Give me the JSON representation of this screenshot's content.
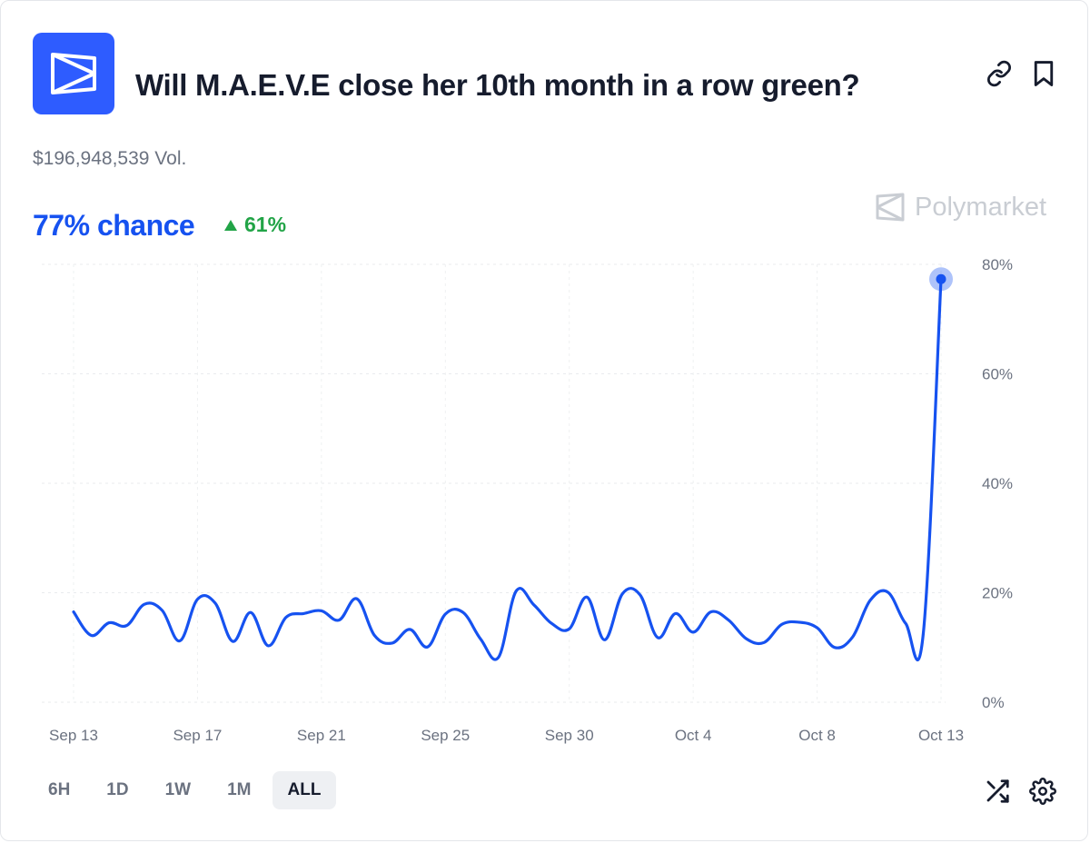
{
  "header": {
    "title": "Will M.A.E.V.E close her 10th month in a row green?",
    "volume": "$196,948,539 Vol.",
    "chance": "77% chance",
    "delta": "61%",
    "watermark": "Polymarket"
  },
  "colors": {
    "accent": "#1652f0",
    "logo_bg": "#2e5cff",
    "positive": "#22a447",
    "muted": "#6b7280"
  },
  "icons": [
    "link-icon",
    "bookmark-icon",
    "shuffle-icon",
    "gear-icon",
    "polymarket-logo-icon",
    "triangle-up-icon"
  ],
  "range_buttons": {
    "items": [
      "6H",
      "1D",
      "1W",
      "1M",
      "ALL"
    ],
    "selected": "ALL"
  },
  "chart_data": {
    "type": "line",
    "x_tick_labels": [
      "Sep 13",
      "Sep 17",
      "Sep 21",
      "Sep 25",
      "Sep 30",
      "Oct 4",
      "Oct 8",
      "Oct 13"
    ],
    "y_tick_labels": [
      "0%",
      "20%",
      "40%",
      "60%",
      "80%"
    ],
    "ylim": [
      0,
      80
    ],
    "grid": true,
    "y_axis_side": "right",
    "series": [
      {
        "color": "#1652f0",
        "values": [
          16.5,
          12.2,
          14.5,
          14,
          17.9,
          16.8,
          11.2,
          18.8,
          18.1,
          11.1,
          16.4,
          10.3,
          15.5,
          16.2,
          16.7,
          15,
          18.9,
          12.2,
          10.8,
          13.3,
          10.1,
          16.1,
          16.4,
          11.5,
          8.2,
          20.3,
          17.8,
          14.4,
          13.4,
          19.2,
          11.4,
          19.8,
          19.6,
          11.8,
          16.2,
          12.8,
          16.5,
          15,
          11.6,
          10.9,
          14.2,
          14.6,
          13.6,
          10,
          11.9,
          18.6,
          20.1,
          14.4,
          12.6,
          77.3
        ]
      }
    ],
    "last_point_marker": true
  }
}
